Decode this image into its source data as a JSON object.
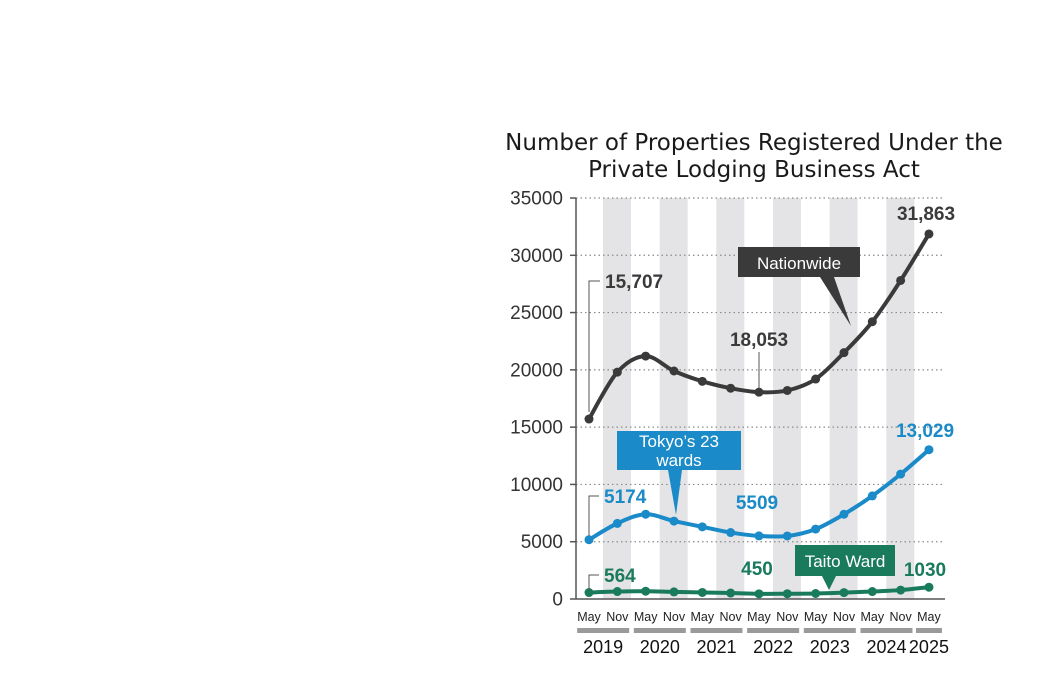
{
  "chart_data": {
    "type": "line",
    "title_lines": [
      "Number of Properties Registered Under the",
      "Private Lodging Business Act"
    ],
    "x": [
      "May 2019",
      "Nov 2019",
      "May 2020",
      "Nov 2020",
      "May 2021",
      "Nov 2021",
      "May 2022",
      "Nov 2022",
      "May 2023",
      "Nov 2023",
      "May 2024",
      "Nov 2024",
      "May 2025"
    ],
    "month_labels": [
      "May",
      "Nov",
      "May",
      "Nov",
      "May",
      "Nov",
      "May",
      "Nov",
      "May",
      "Nov",
      "May",
      "Nov",
      "May"
    ],
    "year_labels": [
      "2019",
      "2020",
      "2021",
      "2022",
      "2023",
      "2024",
      "2025"
    ],
    "ylim": [
      0,
      35000
    ],
    "yticks": [
      0,
      5000,
      10000,
      15000,
      20000,
      25000,
      30000,
      35000
    ],
    "y_tick_labels": [
      "0",
      "5000",
      "10000",
      "15000",
      "20000",
      "25000",
      "30000",
      "35000"
    ],
    "grid": true,
    "series": [
      {
        "name": "Nationwide",
        "color": "#3a3a3a",
        "values": [
          15707,
          19800,
          21200,
          19900,
          19000,
          18400,
          18053,
          18200,
          19200,
          21500,
          24200,
          27800,
          31863
        ],
        "labels": [
          {
            "index": 0,
            "text": "15,707"
          },
          {
            "index": 6,
            "text": "18,053"
          },
          {
            "index": 12,
            "text": "31,863"
          }
        ]
      },
      {
        "name": "Tokyo's 23 wards",
        "name_lines": [
          "Tokyo’s 23",
          "wards"
        ],
        "color": "#1a8ac8",
        "values": [
          5174,
          6600,
          7400,
          6800,
          6300,
          5800,
          5509,
          5500,
          6100,
          7400,
          9000,
          10900,
          13029
        ],
        "labels": [
          {
            "index": 0,
            "text": "5174"
          },
          {
            "index": 6,
            "text": "5509"
          },
          {
            "index": 12,
            "text": "13,029"
          }
        ]
      },
      {
        "name": "Taito Ward",
        "color": "#1a7a5c",
        "values": [
          564,
          650,
          680,
          620,
          570,
          520,
          450,
          460,
          480,
          560,
          650,
          780,
          1030
        ],
        "labels": [
          {
            "index": 0,
            "text": "564"
          },
          {
            "index": 6,
            "text": "450"
          },
          {
            "index": 12,
            "text": "1030"
          }
        ]
      }
    ],
    "colors": {
      "band": "#e4e4e6",
      "axis": "#555555",
      "year_bar": "#9a9a9a"
    }
  }
}
